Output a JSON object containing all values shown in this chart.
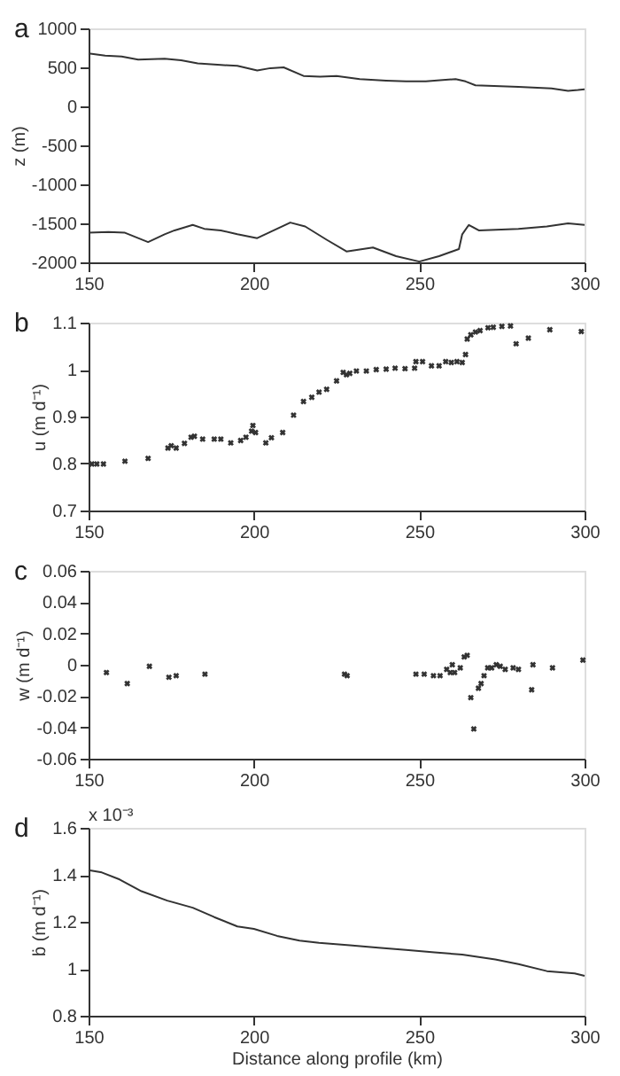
{
  "chart_data": [
    {
      "type": "line",
      "title": "a",
      "ylabel": "z (m)",
      "xlim": [
        150,
        300
      ],
      "xticks": [
        150,
        200,
        250,
        300
      ],
      "ylim": [
        -2000,
        1000
      ],
      "yticks": [
        -2000,
        -1500,
        -1000,
        -500,
        0,
        500,
        1000
      ],
      "grid": false,
      "line_style": "solid",
      "series": [
        {
          "color": "#333333",
          "x": [
            150,
            155,
            160,
            165,
            173,
            178,
            183,
            190,
            195,
            201,
            205,
            209,
            215,
            220,
            225,
            232,
            240,
            246,
            252,
            258,
            261,
            264,
            267,
            280,
            290,
            295,
            298,
            300
          ],
          "values": [
            680,
            650,
            640,
            600,
            610,
            590,
            550,
            530,
            520,
            460,
            490,
            500,
            390,
            380,
            390,
            350,
            330,
            320,
            320,
            340,
            350,
            320,
            270,
            250,
            230,
            200,
            210,
            220
          ]
        },
        {
          "color": "#333333",
          "x": [
            150,
            156,
            161,
            168,
            173,
            176,
            181.5,
            185,
            190,
            195,
            201,
            205,
            211,
            215.5,
            222,
            228,
            236,
            243,
            250,
            256,
            262,
            263,
            265,
            268,
            280,
            288.6,
            295,
            300
          ],
          "values": [
            -1620,
            -1610,
            -1620,
            -1740,
            -1640,
            -1590,
            -1520,
            -1570,
            -1590,
            -1640,
            -1690,
            -1610,
            -1490,
            -1540,
            -1710,
            -1860,
            -1810,
            -1920,
            -1990,
            -1920,
            -1830,
            -1640,
            -1520,
            -1590,
            -1570,
            -1540,
            -1500,
            -1520
          ]
        }
      ]
    },
    {
      "type": "scatter",
      "title": "b",
      "ylabel": "u (m d⁻¹)",
      "xlim": [
        150,
        300
      ],
      "xticks": [
        150,
        200,
        250,
        300
      ],
      "ylim": [
        0.7,
        1.1
      ],
      "yticks": [
        0.7,
        0.8,
        0.9,
        1,
        1.1
      ],
      "grid": false,
      "marker": "cross",
      "series": [
        {
          "color": "#333333",
          "x": [
            151,
            152.5,
            154.5,
            161,
            168,
            174,
            175,
            176.5,
            179,
            181,
            182,
            184.5,
            188,
            190,
            193,
            196,
            197.6,
            199.3,
            199.7,
            200.5,
            203.6,
            205.3,
            208.7,
            212,
            215,
            217.5,
            219.7,
            222,
            225,
            227,
            228,
            229,
            231,
            234,
            237,
            240,
            242.7,
            245.7,
            248.6,
            249,
            251,
            253.7,
            256,
            258,
            259.7,
            261.4,
            263,
            264,
            264.5,
            265.6,
            267,
            268.4,
            270.8,
            272.4,
            275,
            277.6,
            279.3,
            283,
            289.5,
            299
          ],
          "values": [
            0.799,
            0.799,
            0.799,
            0.805,
            0.811,
            0.833,
            0.838,
            0.833,
            0.843,
            0.856,
            0.858,
            0.852,
            0.852,
            0.852,
            0.844,
            0.849,
            0.856,
            0.869,
            0.881,
            0.866,
            0.844,
            0.855,
            0.866,
            0.903,
            0.932,
            0.941,
            0.952,
            0.958,
            0.976,
            0.994,
            0.989,
            0.992,
            0.997,
            0.997,
            1.0,
            1.001,
            1.003,
            1.002,
            1.003,
            1.017,
            1.017,
            1.008,
            1.008,
            1.017,
            1.015,
            1.017,
            1.015,
            1.032,
            1.065,
            1.074,
            1.08,
            1.083,
            1.089,
            1.09,
            1.092,
            1.093,
            1.055,
            1.067,
            1.085,
            1.081
          ]
        }
      ]
    },
    {
      "type": "scatter",
      "title": "c",
      "ylabel": "w (m d⁻¹)",
      "xlim": [
        150,
        300
      ],
      "xticks": [
        150,
        200,
        250,
        300
      ],
      "ylim": [
        -0.06,
        0.06
      ],
      "yticks": [
        -0.06,
        -0.04,
        -0.02,
        0,
        0.02,
        0.04,
        0.06
      ],
      "grid": false,
      "marker": "cross",
      "series": [
        {
          "color": "#333333",
          "x": [
            155.4,
            161.7,
            168.4,
            174.3,
            176.5,
            185.2,
            227.4,
            228.2,
            249,
            251.5,
            254.3,
            256.3,
            258.3,
            259.4,
            260,
            260.7,
            262.4,
            263.6,
            264.5,
            265.6,
            266.5,
            267.9,
            268.7,
            269.6,
            270.7,
            271.9,
            273.3,
            274.5,
            276,
            278.4,
            280,
            284.4,
            284,
            290.3,
            299.5
          ],
          "values": [
            -0.005,
            -0.012,
            -0.001,
            -0.008,
            -0.007,
            -0.006,
            -0.006,
            -0.007,
            -0.006,
            -0.006,
            -0.007,
            -0.007,
            -0.003,
            -0.005,
            0,
            -0.005,
            -0.002,
            0.005,
            0.006,
            -0.021,
            -0.041,
            -0.015,
            -0.012,
            -0.007,
            -0.002,
            -0.002,
            0,
            -0.001,
            -0.003,
            -0.002,
            -0.003,
            0,
            -0.016,
            -0.002,
            0.003
          ]
        }
      ]
    },
    {
      "type": "line",
      "title": "d",
      "ylabel": "ḃ (m d⁻¹)",
      "xlabel": "Distance along profile (km)",
      "annotations": [
        "x 10⁻³"
      ],
      "xlim": [
        150,
        300
      ],
      "xticks": [
        150,
        200,
        250,
        300
      ],
      "ylim": [
        0.8,
        1.6
      ],
      "yticks": [
        0.8,
        1,
        1.2,
        1.4,
        1.6
      ],
      "grid": false,
      "line_style": "solid",
      "series": [
        {
          "color": "#333333",
          "x": [
            150,
            154,
            159.4,
            166,
            173.8,
            181.5,
            188,
            195,
            200,
            207,
            213.8,
            219.7,
            229,
            237.6,
            246,
            254.6,
            263,
            273,
            280,
            288.6,
            297,
            300
          ],
          "values": [
            1.42,
            1.41,
            1.38,
            1.33,
            1.29,
            1.26,
            1.22,
            1.18,
            1.17,
            1.14,
            1.12,
            1.11,
            1.1,
            1.09,
            1.08,
            1.07,
            1.06,
            1.04,
            1.02,
            0.99,
            0.98,
            0.97
          ]
        }
      ]
    }
  ]
}
